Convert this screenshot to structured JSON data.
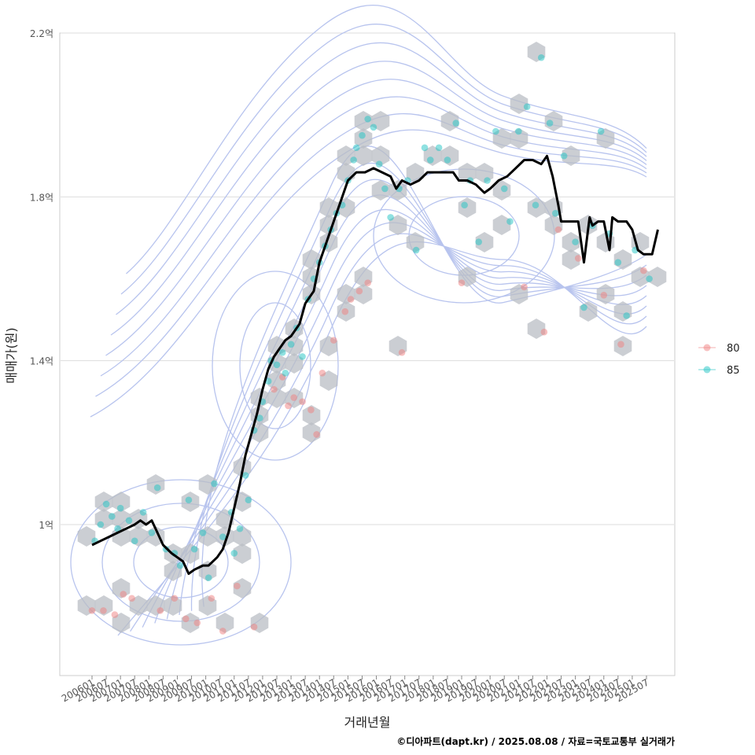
{
  "chart_data": {
    "type": "line",
    "title": "",
    "xlabel": "거래년월",
    "ylabel": "매매가(원)",
    "caption": "©디아파트(dapt.kr) / 2025.08.08 / 자료=국토교통부 실거래가",
    "ylim": [
      0.62,
      2.2
    ],
    "y_ticks": [
      {
        "value": 1.0,
        "label": "1억"
      },
      {
        "value": 1.4,
        "label": "1.4억"
      },
      {
        "value": 1.8,
        "label": "1.8억"
      },
      {
        "value": 2.2,
        "label": "2.2억"
      }
    ],
    "x_ticks": [
      "200601",
      "200607",
      "200701",
      "200707",
      "200801",
      "200807",
      "200901",
      "200907",
      "201001",
      "201007",
      "201101",
      "201107",
      "201201",
      "201207",
      "201301",
      "201307",
      "201401",
      "201407",
      "201501",
      "201507",
      "201601",
      "201607",
      "201701",
      "201707",
      "201801",
      "201807",
      "201901",
      "201907",
      "202001",
      "202007",
      "202101",
      "202107",
      "202201",
      "202207",
      "202301",
      "202307",
      "202401",
      "202407",
      "202501",
      "202507"
    ],
    "legend": {
      "position": "right",
      "entries": [
        {
          "label": "80",
          "color": "#f08080"
        },
        {
          "label": "85",
          "color": "#20c4c4"
        }
      ]
    },
    "series": [
      {
        "name": "moving average",
        "color": "#000000",
        "points": [
          [
            2006.0,
            0.95
          ],
          [
            2006.3,
            0.96
          ],
          [
            2006.6,
            0.97
          ],
          [
            2006.9,
            0.98
          ],
          [
            2007.2,
            0.99
          ],
          [
            2007.5,
            1.0
          ],
          [
            2007.7,
            1.01
          ],
          [
            2007.9,
            1.0
          ],
          [
            2008.1,
            1.01
          ],
          [
            2008.3,
            0.98
          ],
          [
            2008.5,
            0.95
          ],
          [
            2008.8,
            0.93
          ],
          [
            2009.0,
            0.92
          ],
          [
            2009.2,
            0.91
          ],
          [
            2009.4,
            0.88
          ],
          [
            2009.6,
            0.89
          ],
          [
            2009.9,
            0.9
          ],
          [
            2010.1,
            0.9
          ],
          [
            2010.4,
            0.92
          ],
          [
            2010.6,
            0.94
          ],
          [
            2010.8,
            0.98
          ],
          [
            2011.0,
            1.04
          ],
          [
            2011.2,
            1.1
          ],
          [
            2011.4,
            1.17
          ],
          [
            2011.6,
            1.22
          ],
          [
            2011.8,
            1.27
          ],
          [
            2012.0,
            1.33
          ],
          [
            2012.2,
            1.38
          ],
          [
            2012.4,
            1.41
          ],
          [
            2012.6,
            1.43
          ],
          [
            2012.8,
            1.45
          ],
          [
            2013.0,
            1.46
          ],
          [
            2013.3,
            1.49
          ],
          [
            2013.5,
            1.54
          ],
          [
            2013.8,
            1.57
          ],
          [
            2014.0,
            1.64
          ],
          [
            2014.2,
            1.68
          ],
          [
            2014.4,
            1.72
          ],
          [
            2014.6,
            1.76
          ],
          [
            2014.8,
            1.8
          ],
          [
            2015.0,
            1.84
          ],
          [
            2015.3,
            1.86
          ],
          [
            2015.6,
            1.86
          ],
          [
            2015.9,
            1.87
          ],
          [
            2016.2,
            1.86
          ],
          [
            2016.5,
            1.85
          ],
          [
            2016.7,
            1.82
          ],
          [
            2016.9,
            1.84
          ],
          [
            2017.2,
            1.83
          ],
          [
            2017.5,
            1.84
          ],
          [
            2017.8,
            1.86
          ],
          [
            2018.1,
            1.86
          ],
          [
            2018.4,
            1.86
          ],
          [
            2018.7,
            1.86
          ],
          [
            2018.9,
            1.84
          ],
          [
            2019.2,
            1.84
          ],
          [
            2019.5,
            1.83
          ],
          [
            2019.8,
            1.81
          ],
          [
            2020.0,
            1.82
          ],
          [
            2020.3,
            1.84
          ],
          [
            2020.6,
            1.85
          ],
          [
            2020.9,
            1.87
          ],
          [
            2021.2,
            1.89
          ],
          [
            2021.5,
            1.89
          ],
          [
            2021.8,
            1.88
          ],
          [
            2022.0,
            1.9
          ],
          [
            2022.2,
            1.85
          ],
          [
            2022.4,
            1.78
          ],
          [
            2022.5,
            1.74
          ],
          [
            2022.8,
            1.74
          ],
          [
            2023.1,
            1.74
          ],
          [
            2023.3,
            1.64
          ],
          [
            2023.5,
            1.75
          ],
          [
            2023.6,
            1.73
          ],
          [
            2023.8,
            1.74
          ],
          [
            2024.0,
            1.74
          ],
          [
            2024.2,
            1.67
          ],
          [
            2024.3,
            1.75
          ],
          [
            2024.5,
            1.74
          ],
          [
            2024.8,
            1.74
          ],
          [
            2025.0,
            1.72
          ],
          [
            2025.2,
            1.67
          ],
          [
            2025.4,
            1.66
          ],
          [
            2025.7,
            1.66
          ],
          [
            2025.9,
            1.72
          ]
        ]
      }
    ],
    "scatter": [
      {
        "name": "80",
        "color": "#f08080",
        "points": [
          [
            2006.0,
            0.79
          ],
          [
            2006.4,
            0.79
          ],
          [
            2006.8,
            0.78
          ],
          [
            2007.1,
            0.83
          ],
          [
            2007.4,
            0.82
          ],
          [
            2008.4,
            0.79
          ],
          [
            2008.9,
            0.82
          ],
          [
            2009.3,
            0.77
          ],
          [
            2009.7,
            0.76
          ],
          [
            2010.2,
            0.82
          ],
          [
            2010.6,
            0.74
          ],
          [
            2011.1,
            0.85
          ],
          [
            2011.7,
            0.75
          ],
          [
            2012.4,
            1.33
          ],
          [
            2012.7,
            1.36
          ],
          [
            2012.9,
            1.29
          ],
          [
            2013.1,
            1.31
          ],
          [
            2013.4,
            1.3
          ],
          [
            2013.7,
            1.28
          ],
          [
            2013.9,
            1.22
          ],
          [
            2014.1,
            1.37
          ],
          [
            2014.5,
            1.45
          ],
          [
            2014.9,
            1.52
          ],
          [
            2015.1,
            1.55
          ],
          [
            2015.4,
            1.57
          ],
          [
            2015.7,
            1.59
          ],
          [
            2016.9,
            1.42
          ],
          [
            2019.0,
            1.59
          ],
          [
            2021.2,
            1.58
          ],
          [
            2021.9,
            1.47
          ],
          [
            2022.4,
            1.72
          ],
          [
            2023.1,
            1.65
          ],
          [
            2024.0,
            1.56
          ],
          [
            2024.6,
            1.44
          ],
          [
            2025.4,
            1.62
          ]
        ]
      },
      {
        "name": "85",
        "color": "#20c4c4",
        "points": [
          [
            2006.1,
            0.96
          ],
          [
            2006.3,
            1.0
          ],
          [
            2006.5,
            1.05
          ],
          [
            2006.7,
            1.02
          ],
          [
            2006.9,
            0.99
          ],
          [
            2007.0,
            1.04
          ],
          [
            2007.3,
            1.01
          ],
          [
            2007.5,
            0.96
          ],
          [
            2007.8,
            1.03
          ],
          [
            2008.1,
            0.98
          ],
          [
            2008.3,
            1.09
          ],
          [
            2008.6,
            0.94
          ],
          [
            2008.9,
            0.93
          ],
          [
            2009.1,
            0.9
          ],
          [
            2009.4,
            1.06
          ],
          [
            2009.6,
            0.94
          ],
          [
            2009.9,
            0.98
          ],
          [
            2010.1,
            0.87
          ],
          [
            2010.3,
            1.1
          ],
          [
            2010.6,
            0.97
          ],
          [
            2010.9,
            1.03
          ],
          [
            2011.0,
            0.93
          ],
          [
            2011.2,
            0.99
          ],
          [
            2011.4,
            1.12
          ],
          [
            2011.5,
            1.06
          ],
          [
            2011.7,
            1.23
          ],
          [
            2011.9,
            1.26
          ],
          [
            2012.0,
            1.3
          ],
          [
            2012.2,
            1.35
          ],
          [
            2012.3,
            1.4
          ],
          [
            2012.5,
            1.39
          ],
          [
            2012.7,
            1.42
          ],
          [
            2012.8,
            1.37
          ],
          [
            2013.0,
            1.44
          ],
          [
            2013.2,
            1.48
          ],
          [
            2013.4,
            1.41
          ],
          [
            2013.6,
            1.55
          ],
          [
            2013.8,
            1.6
          ],
          [
            2014.0,
            1.64
          ],
          [
            2014.2,
            1.68
          ],
          [
            2014.4,
            1.72
          ],
          [
            2014.6,
            1.76
          ],
          [
            2014.8,
            1.78
          ],
          [
            2015.0,
            1.84
          ],
          [
            2015.2,
            1.89
          ],
          [
            2015.3,
            1.92
          ],
          [
            2015.5,
            1.95
          ],
          [
            2015.7,
            1.99
          ],
          [
            2015.9,
            1.97
          ],
          [
            2016.1,
            1.88
          ],
          [
            2016.3,
            1.82
          ],
          [
            2016.5,
            1.75
          ],
          [
            2016.8,
            1.82
          ],
          [
            2017.1,
            1.84
          ],
          [
            2017.4,
            1.67
          ],
          [
            2017.7,
            1.92
          ],
          [
            2017.9,
            1.89
          ],
          [
            2018.2,
            1.92
          ],
          [
            2018.5,
            1.89
          ],
          [
            2018.8,
            1.98
          ],
          [
            2019.1,
            1.78
          ],
          [
            2019.3,
            1.84
          ],
          [
            2019.6,
            1.69
          ],
          [
            2019.9,
            1.84
          ],
          [
            2020.2,
            1.96
          ],
          [
            2020.5,
            1.82
          ],
          [
            2020.7,
            1.74
          ],
          [
            2021.0,
            1.96
          ],
          [
            2021.3,
            2.02
          ],
          [
            2021.6,
            1.78
          ],
          [
            2021.8,
            2.14
          ],
          [
            2022.1,
            1.98
          ],
          [
            2022.3,
            1.76
          ],
          [
            2022.6,
            1.9
          ],
          [
            2023.0,
            1.69
          ],
          [
            2023.3,
            1.53
          ],
          [
            2023.6,
            1.73
          ],
          [
            2023.9,
            1.96
          ],
          [
            2024.2,
            1.71
          ],
          [
            2024.5,
            1.64
          ],
          [
            2024.8,
            1.51
          ],
          [
            2025.1,
            1.67
          ],
          [
            2025.6,
            1.6
          ]
        ]
      }
    ]
  }
}
